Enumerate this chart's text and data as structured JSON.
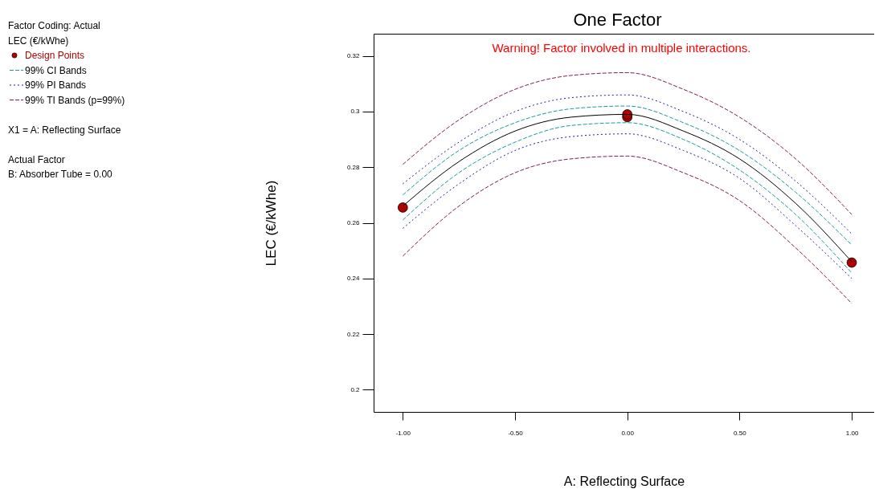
{
  "chart_data": {
    "type": "line",
    "title": "One Factor",
    "xlabel": "A: Reflecting Surface",
    "ylabel": "LEC (€/kWhe)",
    "legend_title": "LEC (€/kWhe)",
    "x": [
      -1,
      -0.75,
      -0.5,
      -0.25,
      0,
      0.25,
      0.5,
      0.75,
      1
    ],
    "series": [
      {
        "name": "Design Points",
        "type": "scatter",
        "color": "#b00000",
        "marker": "circle",
        "x": [
          -1,
          0,
          0,
          1
        ],
        "values": [
          0.2655,
          0.298,
          0.299,
          0.2457
        ]
      },
      {
        "color": "#000000",
        "line_style": "solid",
        "values": [
          0.266,
          0.282,
          0.293,
          0.298,
          0.299,
          0.293,
          0.283,
          0.267,
          0.246
        ]
      },
      {
        "name": "99% CI Bands",
        "color": "#1a9a9a",
        "line_style": "dashed",
        "values": [
          0.27,
          0.286,
          0.296,
          0.301,
          0.302,
          0.296,
          0.286,
          0.271,
          0.252
        ]
      },
      {
        "color": "#1a9a9a",
        "line_style": "dashed",
        "values": [
          0.261,
          0.278,
          0.289,
          0.295,
          0.296,
          0.29,
          0.279,
          0.263,
          0.242
        ]
      },
      {
        "name": "99% PI Bands",
        "color": "#2020a0",
        "line_style": "dotted",
        "values": [
          0.274,
          0.289,
          0.3,
          0.305,
          0.306,
          0.3,
          0.29,
          0.275,
          0.256
        ]
      },
      {
        "color": "#2020a0",
        "line_style": "dotted",
        "values": [
          0.258,
          0.274,
          0.286,
          0.291,
          0.292,
          0.286,
          0.276,
          0.259,
          0.24
        ]
      },
      {
        "name": "99% TI Bands (p=99%)",
        "color": "#7a1f5c",
        "line_style": "dashed",
        "values": [
          0.281,
          0.297,
          0.308,
          0.313,
          0.314,
          0.308,
          0.298,
          0.283,
          0.263
        ]
      },
      {
        "color": "#7a1f5c",
        "line_style": "dashed",
        "values": [
          0.248,
          0.266,
          0.278,
          0.283,
          0.284,
          0.278,
          0.268,
          0.251,
          0.231
        ]
      }
    ],
    "xlim": [
      -1.13,
      1.1
    ],
    "ylim": [
      0.192,
      0.328
    ],
    "xticks": [
      {
        "value": -1,
        "label": "-1.00"
      },
      {
        "value": -0.5,
        "label": "-0.50"
      },
      {
        "value": 0,
        "label": "0.00"
      },
      {
        "value": 0.5,
        "label": "0.50"
      },
      {
        "value": 1,
        "label": "1.00"
      }
    ],
    "yticks": [
      0.2,
      0.22,
      0.24,
      0.26,
      0.28,
      0.3,
      0.32
    ],
    "grid": false,
    "legend": "top left",
    "annotations": [
      "Factor Coding: Actual",
      "X1 = A: Reflecting Surface",
      "Actual Factor",
      "B: Absorber Tube = 0.00",
      "Warning! Factor involved in multiple interactions."
    ]
  }
}
